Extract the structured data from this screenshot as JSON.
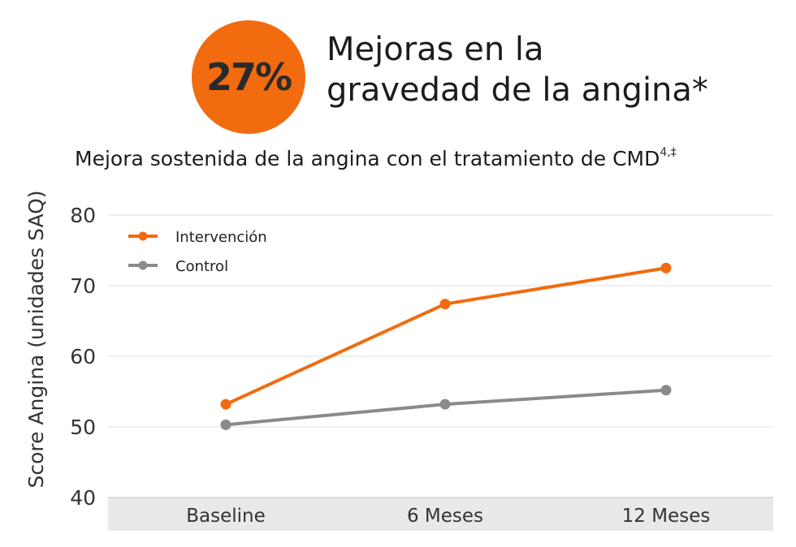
{
  "badge": {
    "value": "27%"
  },
  "headline": {
    "lines": [
      "Mejoras en la",
      "gravedad de la angina*"
    ]
  },
  "subtitle": {
    "text": "Mejora sostenida de la angina con el tratamiento de CMD",
    "sup": "4,‡"
  },
  "colors": {
    "accent": "#f26b0f",
    "intervention": "#f26b0f",
    "control": "#8a8a8c",
    "axis_band": "#e9e9ea",
    "grid": "#dcdcdc"
  },
  "chart_data": {
    "type": "line",
    "title": "Mejora sostenida de la angina con el tratamiento de CMD",
    "xlabel": "",
    "ylabel": "Score Angina (unidades SAQ)",
    "categories": [
      "Baseline",
      "6 Meses",
      "12 Meses"
    ],
    "ylim": [
      40,
      80
    ],
    "yticks": [
      40,
      50,
      60,
      70,
      80
    ],
    "grid": true,
    "legend": "top-left",
    "series": [
      {
        "name": "Intervención",
        "values": [
          53.2,
          67.4,
          72.5
        ],
        "color": "#f26b0f"
      },
      {
        "name": "Control",
        "values": [
          50.3,
          53.2,
          55.2
        ],
        "color": "#8a8a8c"
      }
    ]
  }
}
